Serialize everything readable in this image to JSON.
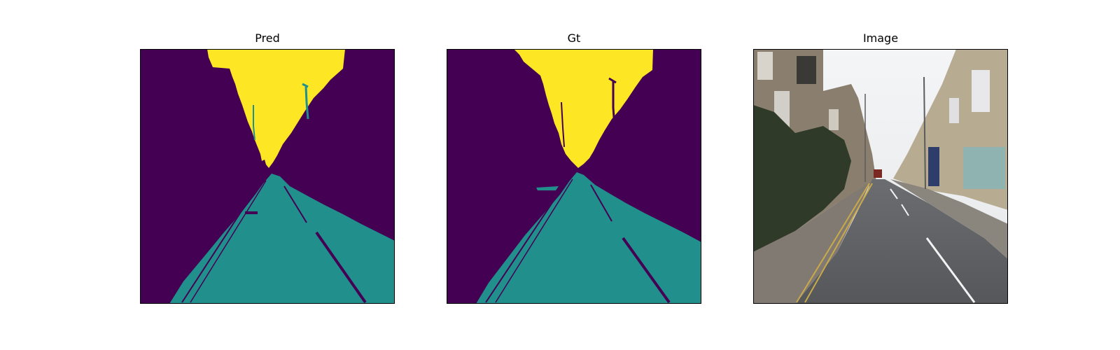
{
  "figure": {
    "panels": [
      {
        "title": "Pred"
      },
      {
        "title": "Gt"
      },
      {
        "title": "Image"
      }
    ]
  },
  "colors": {
    "background_class": "#440154",
    "road_class": "#21908d",
    "sky_class": "#fde725",
    "frame": "#000000"
  }
}
